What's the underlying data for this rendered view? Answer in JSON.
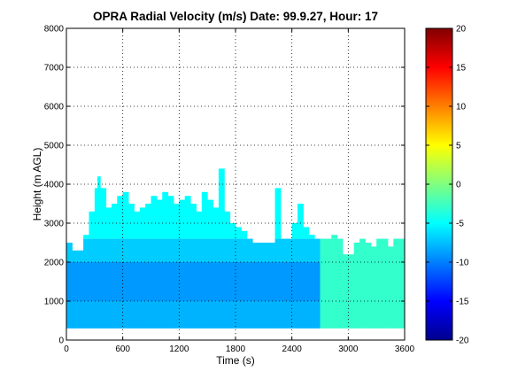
{
  "chart_data": {
    "type": "heatmap",
    "title": "OPRA Radial Velocity (m/s)  Date: 99.9.27, Hour: 17",
    "xlabel": "Time (s)",
    "ylabel": "Height (m AGL)",
    "xlim": [
      0,
      3600
    ],
    "ylim": [
      0,
      8000
    ],
    "xticks": [
      "0",
      "600",
      "1200",
      "1800",
      "2400",
      "3000",
      "3600"
    ],
    "yticks": [
      "0",
      "1000",
      "2000",
      "3000",
      "4000",
      "5000",
      "6000",
      "7000",
      "8000"
    ],
    "grid": true,
    "colorbar": {
      "range": [
        -20,
        20
      ],
      "ticks": [
        "-20",
        "-15",
        "-10",
        "-5",
        "0",
        "5",
        "10",
        "15",
        "20"
      ],
      "colormap": "jet"
    },
    "echo_top_profile": [
      [
        0,
        2500
      ],
      [
        60,
        2300
      ],
      [
        120,
        2300
      ],
      [
        180,
        2700
      ],
      [
        240,
        3300
      ],
      [
        300,
        3900
      ],
      [
        330,
        4200
      ],
      [
        360,
        3900
      ],
      [
        420,
        3400
      ],
      [
        480,
        3500
      ],
      [
        540,
        3700
      ],
      [
        600,
        3800
      ],
      [
        660,
        3500
      ],
      [
        720,
        3300
      ],
      [
        780,
        3400
      ],
      [
        840,
        3500
      ],
      [
        900,
        3700
      ],
      [
        960,
        3600
      ],
      [
        1020,
        3800
      ],
      [
        1080,
        3700
      ],
      [
        1140,
        3500
      ],
      [
        1200,
        3600
      ],
      [
        1260,
        3700
      ],
      [
        1320,
        3500
      ],
      [
        1380,
        3300
      ],
      [
        1440,
        3800
      ],
      [
        1500,
        3600
      ],
      [
        1560,
        3400
      ],
      [
        1620,
        4400
      ],
      [
        1680,
        3300
      ],
      [
        1740,
        3000
      ],
      [
        1800,
        2900
      ],
      [
        1860,
        2800
      ],
      [
        1920,
        2600
      ],
      [
        1980,
        2500
      ],
      [
        2040,
        2500
      ],
      [
        2100,
        2500
      ],
      [
        2160,
        2500
      ],
      [
        2220,
        3900
      ],
      [
        2280,
        2600
      ],
      [
        2340,
        2600
      ],
      [
        2400,
        3000
      ],
      [
        2460,
        3500
      ],
      [
        2520,
        2900
      ],
      [
        2580,
        2700
      ],
      [
        2640,
        2600
      ],
      [
        2700,
        2600
      ],
      [
        2760,
        2600
      ],
      [
        2820,
        2700
      ],
      [
        2880,
        2600
      ],
      [
        2940,
        2200
      ],
      [
        3000,
        2200
      ],
      [
        3060,
        2500
      ],
      [
        3120,
        2600
      ],
      [
        3180,
        2500
      ],
      [
        3240,
        2400
      ],
      [
        3300,
        2600
      ],
      [
        3360,
        2600
      ],
      [
        3420,
        2400
      ],
      [
        3480,
        2600
      ],
      [
        3540,
        2600
      ],
      [
        3600,
        2500
      ]
    ],
    "velocity_by_layer": [
      {
        "height_range": [
          300,
          1000
        ],
        "velocity": -8
      },
      {
        "height_range": [
          1000,
          2000
        ],
        "velocity": -9
      },
      {
        "height_range": [
          2000,
          2600
        ],
        "velocity": -7
      },
      {
        "height_range": [
          2600,
          4400
        ],
        "velocity": -5
      }
    ],
    "late_period_velocity": {
      "time_from": 2700,
      "velocity": -3
    }
  }
}
